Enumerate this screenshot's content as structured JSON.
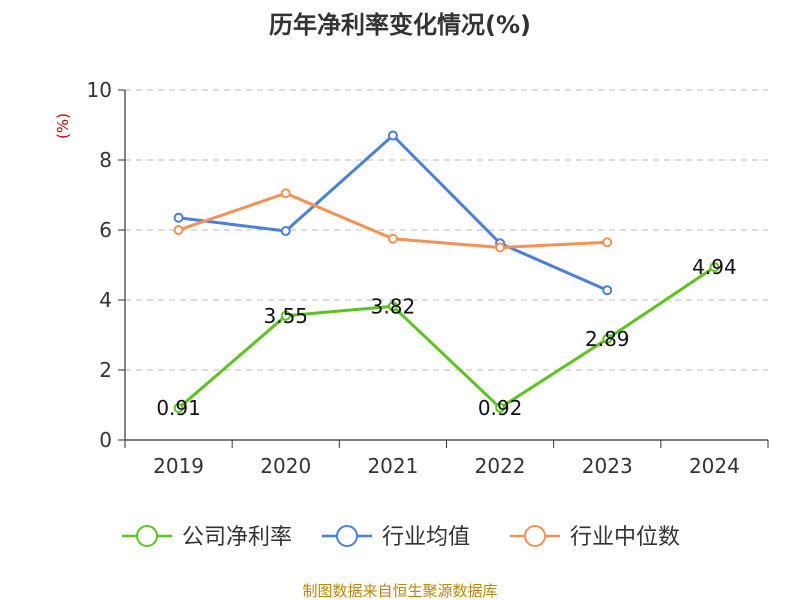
{
  "chart_data": {
    "type": "line",
    "title": "历年净利率变化情况(%)",
    "ylabel": "(%)",
    "categories": [
      "2019",
      "2020",
      "2021",
      "2022",
      "2023",
      "2024"
    ],
    "ylim": [
      0,
      10
    ],
    "yticks": [
      "0",
      "2",
      "4",
      "6",
      "8",
      "10"
    ],
    "grid": true,
    "legend_position": "bottom",
    "series": [
      {
        "name": "公司净利率",
        "color": "#5cc41f",
        "values": [
          0.91,
          3.55,
          3.82,
          0.92,
          2.89,
          4.94
        ],
        "labels": [
          "0.91",
          "3.55",
          "3.82",
          "0.92",
          "2.89",
          "4.94"
        ]
      },
      {
        "name": "行业均值",
        "color": "#4a7fdc",
        "values": [
          6.35,
          5.97,
          8.7,
          5.62,
          4.28,
          null
        ]
      },
      {
        "name": "行业中位数",
        "color": "#f79153",
        "values": [
          6.0,
          7.05,
          5.75,
          5.5,
          5.65,
          null
        ]
      }
    ]
  },
  "source": "制图数据来自恒生聚源数据库"
}
